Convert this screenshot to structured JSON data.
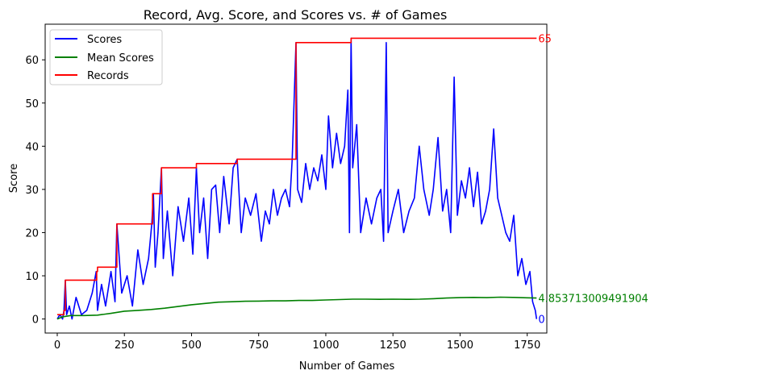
{
  "chart_data": {
    "type": "line",
    "title": "Record, Avg. Score, and Scores vs. # of Games",
    "xlabel": "Number of Games",
    "ylabel": "Score",
    "xlim": [
      -45,
      1823
    ],
    "ylim": [
      -3.25,
      68.25
    ],
    "xticks": [
      0,
      250,
      500,
      750,
      1000,
      1250,
      1500,
      1750
    ],
    "yticks": [
      0,
      10,
      20,
      30,
      40,
      50,
      60
    ],
    "legend_position": "top-left",
    "grid": false,
    "colors": {
      "scores": "#0000ff",
      "mean": "#008000",
      "records": "#ff0000"
    },
    "series": [
      {
        "name": "Scores",
        "color": "#0000ff",
        "points": [
          [
            0,
            0
          ],
          [
            10,
            1
          ],
          [
            20,
            0
          ],
          [
            25,
            2
          ],
          [
            30,
            9
          ],
          [
            35,
            1
          ],
          [
            45,
            3
          ],
          [
            55,
            0
          ],
          [
            70,
            5
          ],
          [
            90,
            1
          ],
          [
            110,
            2
          ],
          [
            130,
            6
          ],
          [
            145,
            11
          ],
          [
            150,
            2
          ],
          [
            165,
            8
          ],
          [
            180,
            3
          ],
          [
            200,
            11
          ],
          [
            215,
            4
          ],
          [
            222,
            22
          ],
          [
            240,
            6
          ],
          [
            260,
            10
          ],
          [
            280,
            3
          ],
          [
            300,
            16
          ],
          [
            320,
            8
          ],
          [
            340,
            14
          ],
          [
            352,
            22
          ],
          [
            358,
            29
          ],
          [
            365,
            12
          ],
          [
            375,
            20
          ],
          [
            388,
            35
          ],
          [
            395,
            14
          ],
          [
            410,
            25
          ],
          [
            430,
            10
          ],
          [
            450,
            26
          ],
          [
            470,
            18
          ],
          [
            490,
            28
          ],
          [
            505,
            15
          ],
          [
            518,
            35
          ],
          [
            530,
            20
          ],
          [
            545,
            28
          ],
          [
            560,
            14
          ],
          [
            575,
            30
          ],
          [
            590,
            31
          ],
          [
            605,
            20
          ],
          [
            620,
            33
          ],
          [
            640,
            22
          ],
          [
            655,
            35
          ],
          [
            670,
            37
          ],
          [
            685,
            20
          ],
          [
            700,
            28
          ],
          [
            720,
            24
          ],
          [
            740,
            29
          ],
          [
            760,
            18
          ],
          [
            775,
            25
          ],
          [
            790,
            22
          ],
          [
            805,
            30
          ],
          [
            820,
            24
          ],
          [
            835,
            28
          ],
          [
            850,
            30
          ],
          [
            865,
            26
          ],
          [
            875,
            37
          ],
          [
            889,
            64
          ],
          [
            895,
            30
          ],
          [
            910,
            27
          ],
          [
            925,
            36
          ],
          [
            940,
            30
          ],
          [
            955,
            35
          ],
          [
            970,
            32
          ],
          [
            985,
            38
          ],
          [
            1000,
            30
          ],
          [
            1010,
            47
          ],
          [
            1025,
            35
          ],
          [
            1040,
            43
          ],
          [
            1055,
            36
          ],
          [
            1070,
            40
          ],
          [
            1082,
            53
          ],
          [
            1088,
            20
          ],
          [
            1094,
            65
          ],
          [
            1100,
            35
          ],
          [
            1115,
            45
          ],
          [
            1130,
            20
          ],
          [
            1150,
            28
          ],
          [
            1170,
            22
          ],
          [
            1190,
            28
          ],
          [
            1205,
            30
          ],
          [
            1215,
            18
          ],
          [
            1225,
            64
          ],
          [
            1232,
            20
          ],
          [
            1250,
            25
          ],
          [
            1270,
            30
          ],
          [
            1290,
            20
          ],
          [
            1310,
            25
          ],
          [
            1330,
            28
          ],
          [
            1348,
            40
          ],
          [
            1365,
            30
          ],
          [
            1385,
            24
          ],
          [
            1400,
            30
          ],
          [
            1418,
            42
          ],
          [
            1435,
            25
          ],
          [
            1450,
            30
          ],
          [
            1465,
            20
          ],
          [
            1478,
            56
          ],
          [
            1490,
            24
          ],
          [
            1505,
            32
          ],
          [
            1520,
            28
          ],
          [
            1535,
            35
          ],
          [
            1550,
            26
          ],
          [
            1565,
            34
          ],
          [
            1580,
            22
          ],
          [
            1595,
            25
          ],
          [
            1610,
            30
          ],
          [
            1625,
            44
          ],
          [
            1640,
            28
          ],
          [
            1655,
            24
          ],
          [
            1670,
            20
          ],
          [
            1685,
            18
          ],
          [
            1700,
            24
          ],
          [
            1715,
            10
          ],
          [
            1730,
            14
          ],
          [
            1745,
            8
          ],
          [
            1760,
            11
          ],
          [
            1770,
            4
          ],
          [
            1780,
            2
          ],
          [
            1785,
            0
          ]
        ]
      },
      {
        "name": "Mean Scores",
        "color": "#008000",
        "points": [
          [
            0,
            0
          ],
          [
            20,
            0.5
          ],
          [
            50,
            0.8
          ],
          [
            100,
            0.8
          ],
          [
            150,
            0.9
          ],
          [
            200,
            1.3
          ],
          [
            250,
            1.8
          ],
          [
            300,
            2.0
          ],
          [
            350,
            2.2
          ],
          [
            400,
            2.5
          ],
          [
            450,
            2.9
          ],
          [
            500,
            3.3
          ],
          [
            550,
            3.6
          ],
          [
            600,
            3.9
          ],
          [
            650,
            4.0
          ],
          [
            700,
            4.1
          ],
          [
            750,
            4.15
          ],
          [
            800,
            4.2
          ],
          [
            850,
            4.2
          ],
          [
            900,
            4.3
          ],
          [
            950,
            4.3
          ],
          [
            1000,
            4.4
          ],
          [
            1050,
            4.5
          ],
          [
            1100,
            4.6
          ],
          [
            1150,
            4.6
          ],
          [
            1200,
            4.55
          ],
          [
            1250,
            4.6
          ],
          [
            1300,
            4.55
          ],
          [
            1350,
            4.6
          ],
          [
            1400,
            4.7
          ],
          [
            1450,
            4.85
          ],
          [
            1500,
            4.95
          ],
          [
            1550,
            5.0
          ],
          [
            1600,
            4.95
          ],
          [
            1650,
            5.05
          ],
          [
            1700,
            5.0
          ],
          [
            1750,
            4.9
          ],
          [
            1785,
            4.853713009491904
          ]
        ]
      },
      {
        "name": "Records",
        "color": "#ff0000",
        "points": [
          [
            0,
            1
          ],
          [
            25,
            1
          ],
          [
            25,
            2
          ],
          [
            30,
            2
          ],
          [
            30,
            9
          ],
          [
            147,
            9
          ],
          [
            147,
            11
          ],
          [
            150,
            11
          ],
          [
            150,
            12
          ],
          [
            222,
            12
          ],
          [
            222,
            22
          ],
          [
            355,
            22
          ],
          [
            355,
            29
          ],
          [
            388,
            29
          ],
          [
            388,
            35
          ],
          [
            518,
            35
          ],
          [
            518,
            36
          ],
          [
            670,
            36
          ],
          [
            670,
            37
          ],
          [
            889,
            37
          ],
          [
            889,
            64
          ],
          [
            1094,
            64
          ],
          [
            1094,
            65
          ],
          [
            1785,
            65
          ]
        ]
      }
    ],
    "annotations": [
      {
        "series": "Records",
        "x": 1785,
        "y": 65,
        "text": "65",
        "color": "#ff0000"
      },
      {
        "series": "Mean Scores",
        "x": 1785,
        "y": 4.853713009491904,
        "text": "4.853713009491904",
        "color": "#008000"
      },
      {
        "series": "Scores",
        "x": 1785,
        "y": 0,
        "text": "0",
        "color": "#0000ff"
      }
    ]
  }
}
